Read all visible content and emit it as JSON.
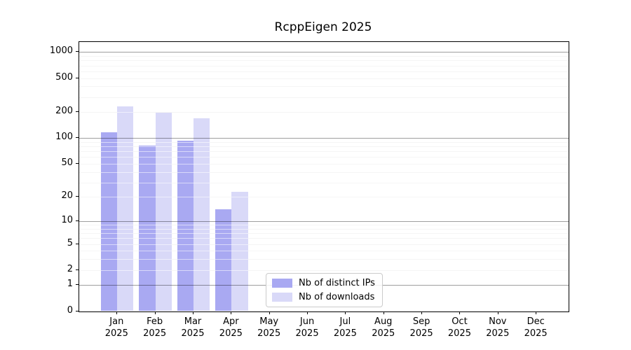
{
  "title": "RcppEigen 2025",
  "chart_data": {
    "type": "bar",
    "title": "RcppEigen 2025",
    "categories": [
      "Jan",
      "Feb",
      "Mar",
      "Apr",
      "May",
      "Jun",
      "Jul",
      "Aug",
      "Sep",
      "Oct",
      "Nov",
      "Dec"
    ],
    "category_year": "2025",
    "series": [
      {
        "name": "Nb of distinct IPs",
        "color": "#a9a9f2",
        "values": [
          118,
          82,
          93,
          14,
          null,
          null,
          null,
          null,
          null,
          null,
          null,
          null
        ]
      },
      {
        "name": "Nb of downloads",
        "color": "#d9d9f8",
        "values": [
          235,
          199,
          170,
          23,
          null,
          null,
          null,
          null,
          null,
          null,
          null,
          null
        ]
      }
    ],
    "yscale": "log1p",
    "ylim": [
      0,
      1300
    ],
    "y_ticks": [
      0,
      1,
      2,
      5,
      10,
      20,
      50,
      100,
      200,
      500,
      1000
    ],
    "grid": "horizontal",
    "legend_position": "lower-center"
  }
}
